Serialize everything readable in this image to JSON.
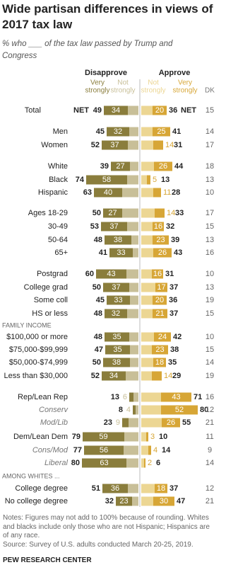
{
  "chart_data": {
    "type": "diverging-bar",
    "title": "Wide partisan differences in views of 2017 tax law",
    "subtitle": "% who ___ of the tax law passed by Trump and Congress",
    "disapprove_label": "Disapprove",
    "approve_label": "Approve",
    "very_strongly": [
      "Very",
      "strongly"
    ],
    "not_strongly": [
      "Not",
      "strongly"
    ],
    "dk_label": "DK",
    "colors": {
      "disapprove_very": "#8a7d3c",
      "disapprove_not": "#c8bf98",
      "approve_not": "#ecd693",
      "approve_very": "#d7a636"
    },
    "rows": [
      {
        "label": "Total",
        "net_tag": "NET",
        "disapprove_net": 49,
        "disapprove_very": 34,
        "disapprove_not": 15,
        "approve_not": 16,
        "approve_very": 20,
        "approve_net": 36,
        "dk": 15
      },
      {
        "label": "Men",
        "disapprove_net": 45,
        "disapprove_very": 32,
        "disapprove_not": 13,
        "approve_not": 16,
        "approve_very": 25,
        "approve_net": 41,
        "dk": 14
      },
      {
        "label": "Women",
        "disapprove_net": 52,
        "disapprove_very": 37,
        "disapprove_not": 15,
        "approve_not": 17,
        "approve_very": 14,
        "approve_net": 31,
        "dk": 17
      },
      {
        "label": "White",
        "disapprove_net": 39,
        "disapprove_very": 27,
        "disapprove_not": 12,
        "approve_not": 18,
        "approve_very": 26,
        "approve_net": 44,
        "dk": 18
      },
      {
        "label": "Black",
        "disapprove_net": 74,
        "disapprove_very": 58,
        "disapprove_not": 16,
        "approve_not": 8,
        "approve_very": 5,
        "approve_net": 13,
        "dk": 13
      },
      {
        "label": "Hispanic",
        "disapprove_net": 63,
        "disapprove_very": 40,
        "disapprove_not": 23,
        "approve_not": 17,
        "approve_very": 11,
        "approve_net": 28,
        "dk": 10
      },
      {
        "label": "Ages 18-29",
        "disapprove_net": 50,
        "disapprove_very": 27,
        "disapprove_not": 23,
        "approve_not": 19,
        "approve_very": 14,
        "approve_net": 33,
        "dk": 17
      },
      {
        "label": "30-49",
        "disapprove_net": 53,
        "disapprove_very": 37,
        "disapprove_not": 16,
        "approve_not": 16,
        "approve_very": 16,
        "approve_net": 32,
        "dk": 15
      },
      {
        "label": "50-64",
        "disapprove_net": 48,
        "disapprove_very": 38,
        "disapprove_not": 10,
        "approve_not": 16,
        "approve_very": 23,
        "approve_net": 39,
        "dk": 13
      },
      {
        "label": "65+",
        "disapprove_net": 41,
        "disapprove_very": 33,
        "disapprove_not": 8,
        "approve_not": 17,
        "approve_very": 26,
        "approve_net": 43,
        "dk": 16
      },
      {
        "label": "Postgrad",
        "disapprove_net": 60,
        "disapprove_very": 43,
        "disapprove_not": 17,
        "approve_not": 15,
        "approve_very": 16,
        "approve_net": 31,
        "dk": 10
      },
      {
        "label": "College grad",
        "disapprove_net": 50,
        "disapprove_very": 37,
        "disapprove_not": 13,
        "approve_not": 20,
        "approve_very": 17,
        "approve_net": 37,
        "dk": 13
      },
      {
        "label": "Some coll",
        "disapprove_net": 45,
        "disapprove_very": 33,
        "disapprove_not": 12,
        "approve_not": 16,
        "approve_very": 20,
        "approve_net": 36,
        "dk": 19
      },
      {
        "label": "HS or less",
        "disapprove_net": 48,
        "disapprove_very": 32,
        "disapprove_not": 16,
        "approve_not": 16,
        "approve_very": 21,
        "approve_net": 37,
        "dk": 15
      },
      {
        "section": "FAMILY INCOME"
      },
      {
        "label": "$100,000 or more",
        "disapprove_net": 48,
        "disapprove_very": 35,
        "disapprove_not": 13,
        "approve_not": 18,
        "approve_very": 24,
        "approve_net": 42,
        "dk": 10
      },
      {
        "label": "$75,000-$99,999",
        "disapprove_net": 47,
        "disapprove_very": 35,
        "disapprove_not": 12,
        "approve_not": 15,
        "approve_very": 23,
        "approve_net": 38,
        "dk": 15
      },
      {
        "label": "$50,000-$74,999",
        "disapprove_net": 50,
        "disapprove_very": 38,
        "disapprove_not": 12,
        "approve_not": 17,
        "approve_very": 18,
        "approve_net": 35,
        "dk": 14
      },
      {
        "label": "Less than $30,000",
        "disapprove_net": 52,
        "disapprove_very": 34,
        "disapprove_not": 18,
        "approve_not": 15,
        "approve_very": 14,
        "approve_net": 29,
        "dk": 19
      },
      {
        "label": "Rep/Lean Rep",
        "disapprove_net": 13,
        "disapprove_very": 6,
        "disapprove_not": 7,
        "approve_not": 28,
        "approve_very": 43,
        "approve_net": 71,
        "dk": 16
      },
      {
        "label": "Conserv",
        "sub": true,
        "disapprove_net": 8,
        "disapprove_very": 4,
        "disapprove_not": 4,
        "approve_not": 28,
        "approve_very": 52,
        "approve_net": 80,
        "dk": 12
      },
      {
        "label": "Mod/Lib",
        "sub": true,
        "disapprove_net": 23,
        "disapprove_very": 9,
        "disapprove_not": 14,
        "approve_not": 29,
        "approve_very": 26,
        "approve_net": 55,
        "dk": 21
      },
      {
        "label": "Dem/Lean Dem",
        "disapprove_net": 79,
        "disapprove_very": 59,
        "disapprove_not": 20,
        "approve_not": 7,
        "approve_very": 3,
        "approve_net": 10,
        "dk": 11
      },
      {
        "label": "Cons/Mod",
        "sub": true,
        "disapprove_net": 77,
        "disapprove_very": 56,
        "disapprove_not": 21,
        "approve_not": 10,
        "approve_very": 4,
        "approve_net": 14,
        "dk": 9
      },
      {
        "label": "Liberal",
        "sub": true,
        "disapprove_net": 80,
        "disapprove_very": 63,
        "disapprove_not": 17,
        "approve_not": 4,
        "approve_very": 2,
        "approve_net": 6,
        "dk": 14
      },
      {
        "section": "AMONG WHITES ..."
      },
      {
        "label": "College degree",
        "disapprove_net": 51,
        "disapprove_very": 36,
        "disapprove_not": 15,
        "approve_not": 19,
        "approve_very": 18,
        "approve_net": 37,
        "dk": 12
      },
      {
        "label": "No college degree",
        "disapprove_net": 32,
        "disapprove_very": 23,
        "disapprove_not": 9,
        "approve_not": 17,
        "approve_very": 30,
        "approve_net": 47,
        "dk": 21
      }
    ],
    "notes": "Notes: Figures may not add to 100% because of rounding. Whites and blacks include only those who are not Hispanic; Hispanics are of any race.",
    "source": "Source: Survey of U.S. adults conducted March 20-25, 2019.",
    "credit": "PEW RESEARCH CENTER"
  }
}
